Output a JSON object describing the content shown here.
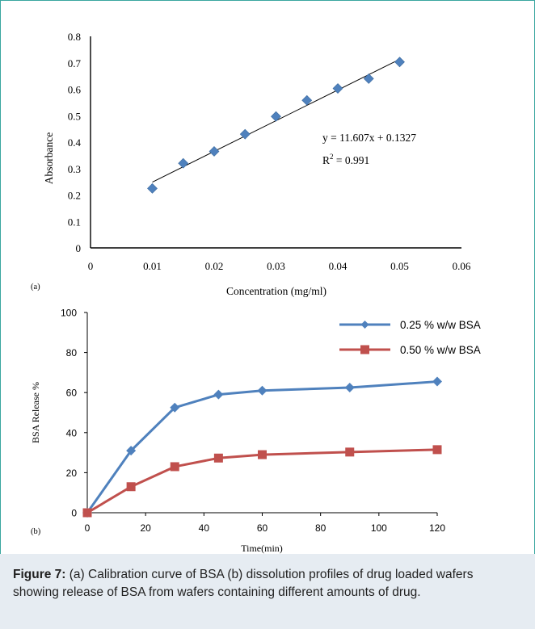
{
  "caption": {
    "label": "Figure 7:",
    "text": " (a) Calibration curve of BSA (b) dissolution profiles of drug loaded wafers showing release of BSA from wafers containing different amounts of drug."
  },
  "chart_data": [
    {
      "type": "scatter",
      "panel_label": "(a)",
      "title": "",
      "xlabel": "Concentration (mg/ml)",
      "ylabel": "Absorbance",
      "xlim": [
        0,
        0.06
      ],
      "ylim": [
        0,
        0.8
      ],
      "x_ticks": [
        "0",
        "0.01",
        "0.02",
        "0.03",
        "0.04",
        "0.05",
        "0.06"
      ],
      "y_ticks": [
        "0",
        "0.1",
        "0.2",
        "0.3",
        "0.4",
        "0.5",
        "0.6",
        "0.7",
        "0.8"
      ],
      "grid": false,
      "points": [
        {
          "x": 0.01,
          "y": 0.225
        },
        {
          "x": 0.015,
          "y": 0.32
        },
        {
          "x": 0.02,
          "y": 0.365
        },
        {
          "x": 0.025,
          "y": 0.43
        },
        {
          "x": 0.03,
          "y": 0.497
        },
        {
          "x": 0.035,
          "y": 0.558
        },
        {
          "x": 0.04,
          "y": 0.603
        },
        {
          "x": 0.045,
          "y": 0.64
        },
        {
          "x": 0.05,
          "y": 0.703
        }
      ],
      "trendline": {
        "slope": 11.607,
        "intercept": 0.1327,
        "x_range": [
          0.01,
          0.05
        ]
      },
      "equation": "y = 11.607x + 0.1327",
      "r2_prefix": "R",
      "r2_sup": "2",
      "r2_suffix": " = 0.991",
      "marker_color": "#4f81bd"
    },
    {
      "type": "line",
      "panel_label": "(b)",
      "title": "",
      "xlabel": "Time(min)",
      "ylabel": "BSA Release %",
      "xlim": [
        0,
        120
      ],
      "ylim": [
        0,
        100
      ],
      "x_ticks": [
        "0",
        "20",
        "40",
        "60",
        "80",
        "100",
        "120"
      ],
      "y_ticks": [
        "0",
        "20",
        "40",
        "60",
        "80",
        "100"
      ],
      "grid": false,
      "legend_position": "top-right",
      "x": [
        0,
        15,
        30,
        45,
        60,
        90,
        120
      ],
      "series": [
        {
          "name": "0.25 % w/w BSA",
          "values": [
            0,
            31,
            52.5,
            59,
            61,
            62.5,
            65.5
          ],
          "color": "#4f81bd",
          "marker": "diamond"
        },
        {
          "name": "0.50 % w/w BSA",
          "values": [
            0,
            13,
            23,
            27.3,
            29,
            30.3,
            31.5
          ],
          "color": "#c0504d",
          "marker": "square"
        }
      ]
    }
  ]
}
